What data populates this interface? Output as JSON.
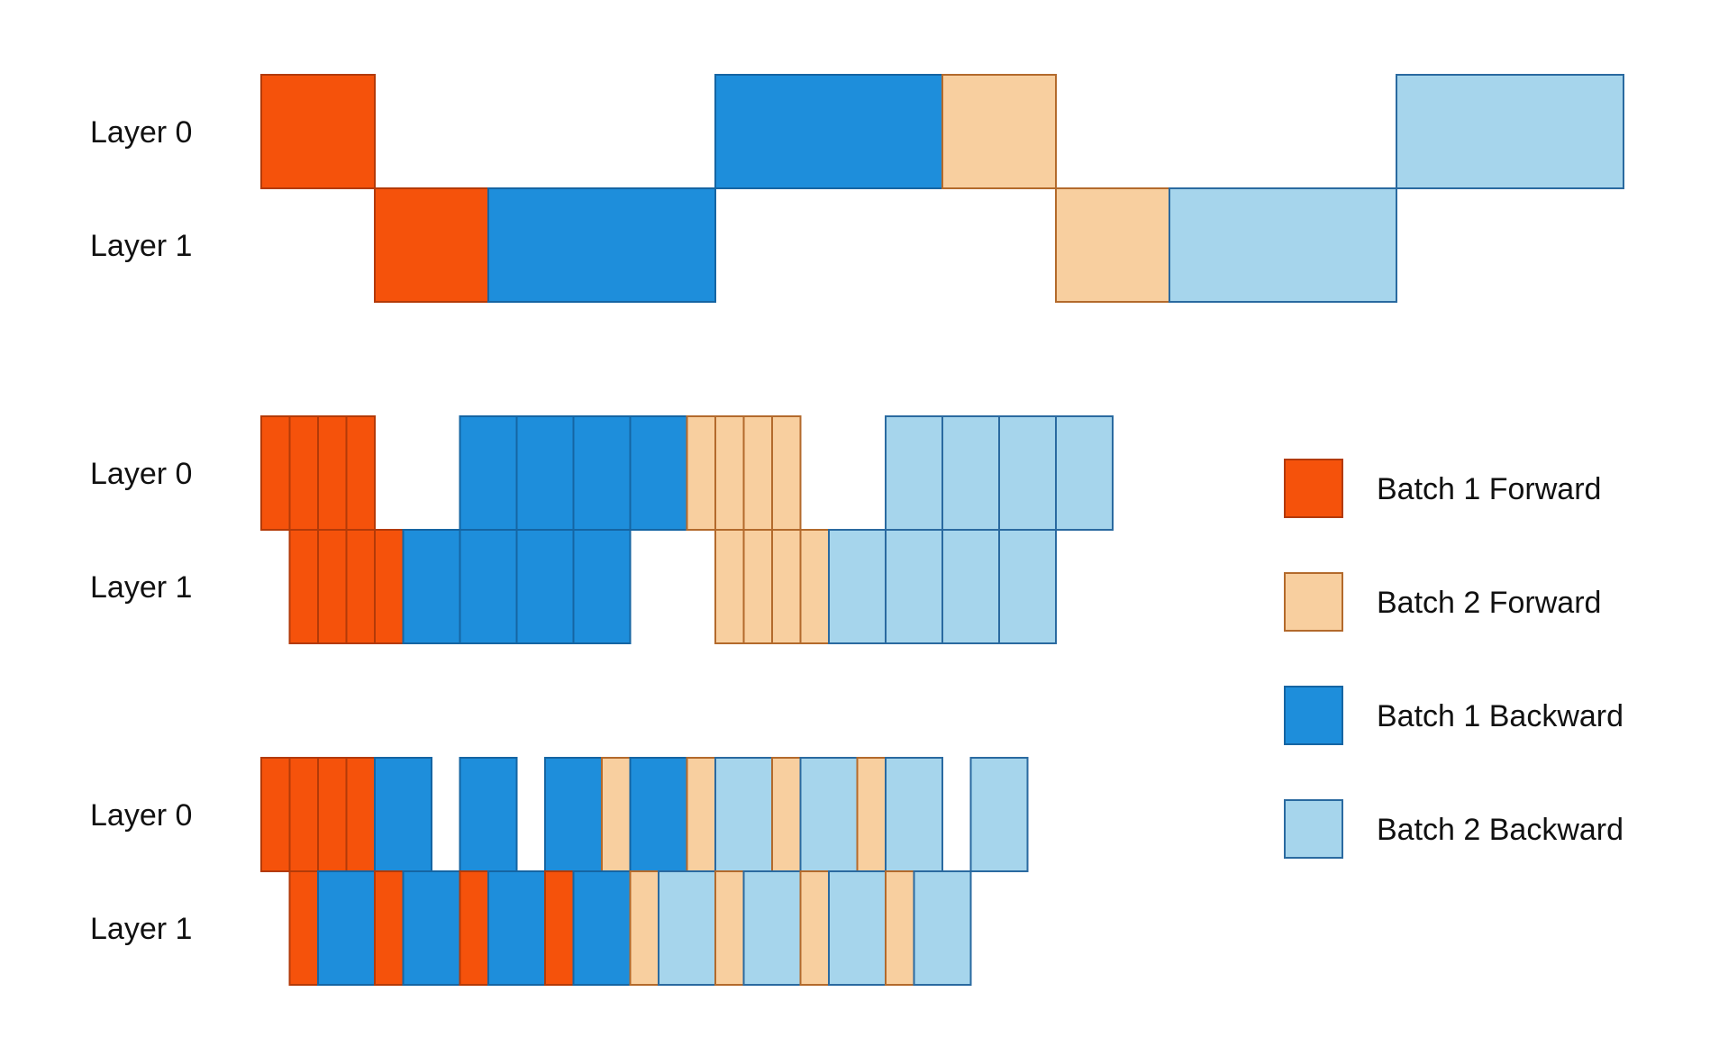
{
  "colors": {
    "b1_fwd": {
      "fill": "#f5520b",
      "stroke": "#b33a08"
    },
    "b2_fwd": {
      "fill": "#f8cf9f",
      "stroke": "#b36a2c"
    },
    "b1_bwd": {
      "fill": "#1e8edb",
      "stroke": "#1565a3"
    },
    "b2_bwd": {
      "fill": "#a6d5ec",
      "stroke": "#2a6aa0"
    }
  },
  "legend": [
    {
      "key": "b1_fwd",
      "label": "Batch 1 Forward"
    },
    {
      "key": "b2_fwd",
      "label": "Batch 2 Forward"
    },
    {
      "key": "b1_bwd",
      "label": "Batch 1 Backward"
    },
    {
      "key": "b2_bwd",
      "label": "Batch 2 Backward"
    }
  ],
  "diagrams": [
    {
      "rows": [
        {
          "label": "Layer 0",
          "blocks": [
            {
              "start": 0,
              "dur": 4,
              "type": "b1_fwd"
            },
            {
              "start": 16,
              "dur": 8,
              "type": "b1_bwd"
            },
            {
              "start": 24,
              "dur": 4,
              "type": "b2_fwd"
            },
            {
              "start": 40,
              "dur": 8,
              "type": "b2_bwd"
            }
          ]
        },
        {
          "label": "Layer 1",
          "blocks": [
            {
              "start": 4,
              "dur": 4,
              "type": "b1_fwd"
            },
            {
              "start": 8,
              "dur": 8,
              "type": "b1_bwd"
            },
            {
              "start": 28,
              "dur": 4,
              "type": "b2_fwd"
            },
            {
              "start": 32,
              "dur": 8,
              "type": "b2_bwd"
            }
          ]
        }
      ]
    },
    {
      "rows": [
        {
          "label": "Layer 0",
          "blocks": [
            {
              "start": 0,
              "dur": 1,
              "type": "b1_fwd"
            },
            {
              "start": 1,
              "dur": 1,
              "type": "b1_fwd"
            },
            {
              "start": 2,
              "dur": 1,
              "type": "b1_fwd"
            },
            {
              "start": 3,
              "dur": 1,
              "type": "b1_fwd"
            },
            {
              "start": 7,
              "dur": 2,
              "type": "b1_bwd"
            },
            {
              "start": 9,
              "dur": 2,
              "type": "b1_bwd"
            },
            {
              "start": 11,
              "dur": 2,
              "type": "b1_bwd"
            },
            {
              "start": 13,
              "dur": 2,
              "type": "b1_bwd"
            },
            {
              "start": 15,
              "dur": 1,
              "type": "b2_fwd"
            },
            {
              "start": 16,
              "dur": 1,
              "type": "b2_fwd"
            },
            {
              "start": 17,
              "dur": 1,
              "type": "b2_fwd"
            },
            {
              "start": 18,
              "dur": 1,
              "type": "b2_fwd"
            },
            {
              "start": 22,
              "dur": 2,
              "type": "b2_bwd"
            },
            {
              "start": 24,
              "dur": 2,
              "type": "b2_bwd"
            },
            {
              "start": 26,
              "dur": 2,
              "type": "b2_bwd"
            },
            {
              "start": 28,
              "dur": 2,
              "type": "b2_bwd"
            }
          ]
        },
        {
          "label": "Layer 1",
          "blocks": [
            {
              "start": 1,
              "dur": 1,
              "type": "b1_fwd"
            },
            {
              "start": 2,
              "dur": 1,
              "type": "b1_fwd"
            },
            {
              "start": 3,
              "dur": 1,
              "type": "b1_fwd"
            },
            {
              "start": 4,
              "dur": 1,
              "type": "b1_fwd"
            },
            {
              "start": 5,
              "dur": 2,
              "type": "b1_bwd"
            },
            {
              "start": 7,
              "dur": 2,
              "type": "b1_bwd"
            },
            {
              "start": 9,
              "dur": 2,
              "type": "b1_bwd"
            },
            {
              "start": 11,
              "dur": 2,
              "type": "b1_bwd"
            },
            {
              "start": 16,
              "dur": 1,
              "type": "b2_fwd"
            },
            {
              "start": 17,
              "dur": 1,
              "type": "b2_fwd"
            },
            {
              "start": 18,
              "dur": 1,
              "type": "b2_fwd"
            },
            {
              "start": 19,
              "dur": 1,
              "type": "b2_fwd"
            },
            {
              "start": 20,
              "dur": 2,
              "type": "b2_bwd"
            },
            {
              "start": 22,
              "dur": 2,
              "type": "b2_bwd"
            },
            {
              "start": 24,
              "dur": 2,
              "type": "b2_bwd"
            },
            {
              "start": 26,
              "dur": 2,
              "type": "b2_bwd"
            }
          ]
        }
      ]
    },
    {
      "rows": [
        {
          "label": "Layer 0",
          "blocks": [
            {
              "start": 0,
              "dur": 1,
              "type": "b1_fwd"
            },
            {
              "start": 1,
              "dur": 1,
              "type": "b1_fwd"
            },
            {
              "start": 2,
              "dur": 1,
              "type": "b1_fwd"
            },
            {
              "start": 3,
              "dur": 1,
              "type": "b1_fwd"
            },
            {
              "start": 4,
              "dur": 2,
              "type": "b1_bwd"
            },
            {
              "start": 7,
              "dur": 2,
              "type": "b1_bwd"
            },
            {
              "start": 10,
              "dur": 2,
              "type": "b1_bwd"
            },
            {
              "start": 12,
              "dur": 1,
              "type": "b2_fwd"
            },
            {
              "start": 13,
              "dur": 2,
              "type": "b1_bwd"
            },
            {
              "start": 15,
              "dur": 1,
              "type": "b2_fwd"
            },
            {
              "start": 16,
              "dur": 2,
              "type": "b2_bwd"
            },
            {
              "start": 18,
              "dur": 1,
              "type": "b2_fwd"
            },
            {
              "start": 19,
              "dur": 2,
              "type": "b2_bwd"
            },
            {
              "start": 21,
              "dur": 1,
              "type": "b2_fwd"
            },
            {
              "start": 22,
              "dur": 2,
              "type": "b2_bwd"
            },
            {
              "start": 25,
              "dur": 2,
              "type": "b2_bwd"
            }
          ]
        },
        {
          "label": "Layer 1",
          "blocks": [
            {
              "start": 1,
              "dur": 1,
              "type": "b1_fwd"
            },
            {
              "start": 2,
              "dur": 2,
              "type": "b1_bwd"
            },
            {
              "start": 4,
              "dur": 1,
              "type": "b1_fwd"
            },
            {
              "start": 5,
              "dur": 2,
              "type": "b1_bwd"
            },
            {
              "start": 7,
              "dur": 1,
              "type": "b1_fwd"
            },
            {
              "start": 8,
              "dur": 2,
              "type": "b1_bwd"
            },
            {
              "start": 10,
              "dur": 1,
              "type": "b1_fwd"
            },
            {
              "start": 11,
              "dur": 2,
              "type": "b1_bwd"
            },
            {
              "start": 13,
              "dur": 1,
              "type": "b2_fwd"
            },
            {
              "start": 14,
              "dur": 2,
              "type": "b2_bwd"
            },
            {
              "start": 16,
              "dur": 1,
              "type": "b2_fwd"
            },
            {
              "start": 17,
              "dur": 2,
              "type": "b2_bwd"
            },
            {
              "start": 19,
              "dur": 1,
              "type": "b2_fwd"
            },
            {
              "start": 20,
              "dur": 2,
              "type": "b2_bwd"
            },
            {
              "start": 22,
              "dur": 1,
              "type": "b2_fwd"
            },
            {
              "start": 23,
              "dur": 2,
              "type": "b2_bwd"
            }
          ]
        }
      ]
    }
  ]
}
